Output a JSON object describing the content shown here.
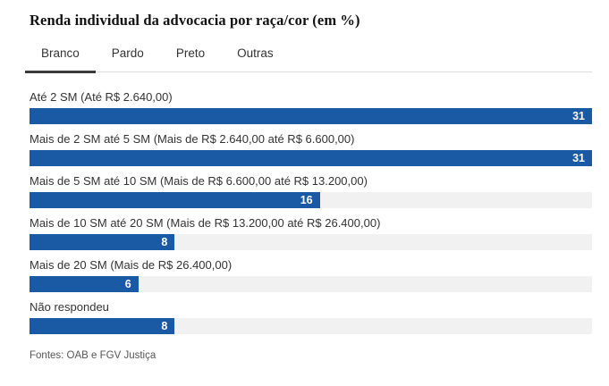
{
  "header": {
    "title": "Renda individual da advocacia por raça/cor (em %)"
  },
  "tabs": [
    {
      "label": "Branco",
      "active": true
    },
    {
      "label": "Pardo",
      "active": false
    },
    {
      "label": "Preto",
      "active": false
    },
    {
      "label": "Outras",
      "active": false
    }
  ],
  "chart_data": {
    "type": "bar",
    "orientation": "horizontal",
    "title": "Renda individual da advocacia por raça/cor (em %)",
    "active_series": "Branco",
    "categories": [
      "Até 2 SM (Até R$ 2.640,00)",
      "Mais de 2 SM até 5 SM (Mais de R$ 2.640,00 até R$ 6.600,00)",
      "Mais de 5 SM até 10 SM (Mais de R$ 6.600,00 até R$ 13.200,00)",
      "Mais de 10 SM até 20 SM (Mais de R$ 13.200,00 até R$ 26.400,00)",
      "Mais de 20 SM (Mais de R$ 26.400,00)",
      "Não respondeu"
    ],
    "values": [
      31,
      31,
      16,
      8,
      6,
      8
    ],
    "value_labels": [
      "31",
      "31",
      "16",
      "8",
      "6",
      "8"
    ],
    "xlim": [
      0,
      31
    ],
    "grid": false,
    "legend": false,
    "bar_color": "#1a5aa5",
    "track_color": "#f1f1f1"
  },
  "footer": {
    "source": "Fontes: OAB e FGV Justiça"
  }
}
